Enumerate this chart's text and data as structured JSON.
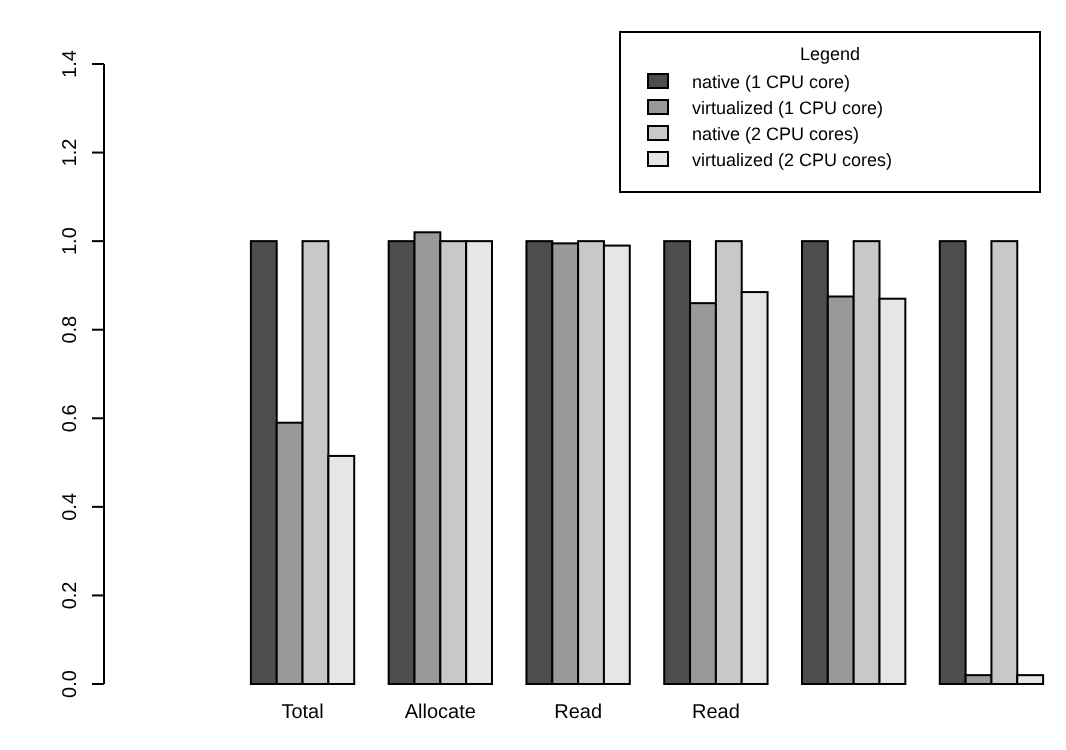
{
  "chart_data": {
    "type": "bar",
    "categories": [
      "Total",
      "Allocate",
      "Read",
      "Read",
      null,
      null
    ],
    "legend_title": "Legend",
    "legend": "top right",
    "ylim": [
      0,
      1.4
    ],
    "yticks": [
      {
        "value": 0,
        "label": "0.0"
      },
      {
        "value": 0.2,
        "label": "0.2"
      },
      {
        "value": 0.4,
        "label": "0.4"
      },
      {
        "value": 0.6,
        "label": "0.6"
      },
      {
        "value": 0.8,
        "label": "0.8"
      },
      {
        "value": 1,
        "label": "1.0"
      },
      {
        "value": 1.2,
        "label": "1.2"
      },
      {
        "value": 1.4,
        "label": "1.4"
      }
    ],
    "series": [
      {
        "name": "native (1 CPU core)",
        "color": "#4d4d4d",
        "values": [
          1,
          1,
          1,
          1,
          1,
          1
        ]
      },
      {
        "name": "virtualized (1 CPU core)",
        "color": "#999999",
        "values": [
          0.59,
          1.02,
          0.995,
          0.86,
          0.875,
          0.02
        ]
      },
      {
        "name": "native (2 CPU cores)",
        "color": "#c8c8c8",
        "values": [
          1,
          1,
          1,
          1,
          1,
          1
        ]
      },
      {
        "name": "virtualized (2 CPU cores)",
        "color": "#e6e6e6",
        "values": [
          0.515,
          1,
          0.99,
          0.885,
          0.87,
          0.02
        ]
      }
    ]
  }
}
